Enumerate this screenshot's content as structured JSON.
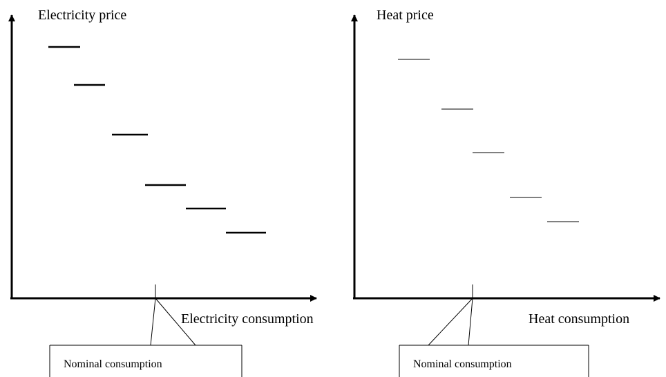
{
  "left_panel": {
    "y_label": "Electricity price",
    "x_label": "Electricity consumption",
    "callout": "Nominal consumption"
  },
  "right_panel": {
    "y_label": "Heat price",
    "x_label": "Heat consumption",
    "callout": "Nominal consumption"
  }
}
